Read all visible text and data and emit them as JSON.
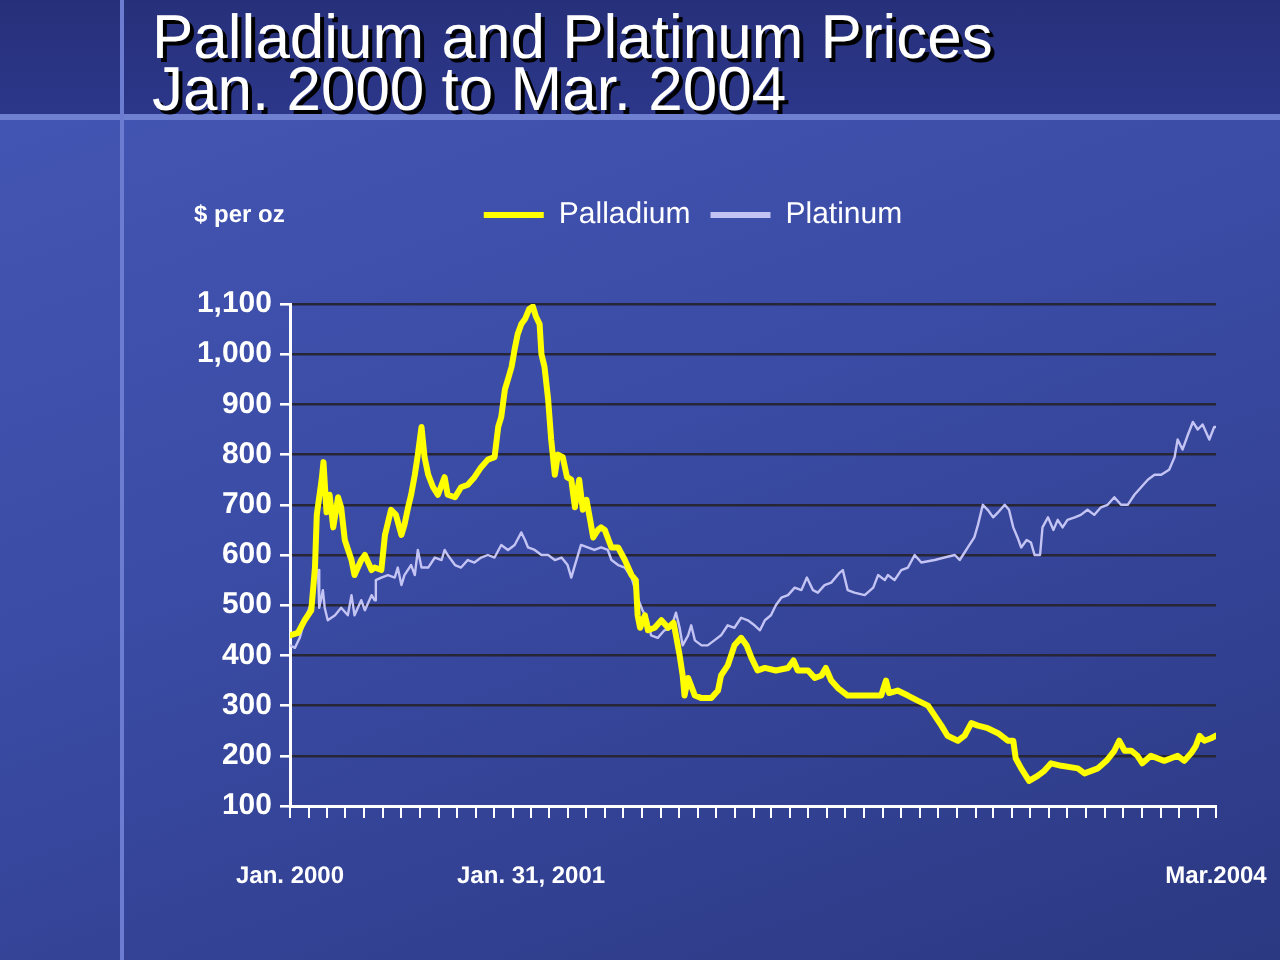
{
  "chart_data": {
    "type": "line",
    "title": "Palladium and Platinum Prices",
    "subtitle": "Jan. 2000 to Mar. 2004",
    "ylabel": "$ per oz",
    "series": [
      {
        "name": "Palladium",
        "color": "#ffff00",
        "x": [
          "2000-01-01",
          "2000-01-14",
          "2000-01-25",
          "2000-02-05",
          "2000-02-11",
          "2000-02-14",
          "2000-02-22",
          "2000-02-25",
          "2000-03-01",
          "2000-03-06",
          "2000-03-12",
          "2000-03-20",
          "2000-03-25",
          "2000-03-31",
          "2000-04-11",
          "2000-04-16",
          "2000-04-27",
          "2000-05-03",
          "2000-05-14",
          "2000-05-19",
          "2000-05-30",
          "2000-06-05",
          "2000-06-15",
          "2000-06-23",
          "2000-07-02",
          "2000-07-07",
          "2000-07-13",
          "2000-07-18",
          "2000-07-24",
          "2000-07-29",
          "2000-08-04",
          "2000-08-09",
          "2000-08-15",
          "2000-08-23",
          "2000-08-31",
          "2000-09-11",
          "2000-09-16",
          "2000-09-28",
          "2000-10-08",
          "2000-10-19",
          "2000-10-30",
          "2000-11-10",
          "2000-11-21",
          "2000-12-02",
          "2000-12-08",
          "2000-12-13",
          "2000-12-19",
          "2000-12-24",
          "2000-12-30",
          "2001-01-04",
          "2001-01-09",
          "2001-01-15",
          "2001-01-21",
          "2001-01-28",
          "2001-02-03",
          "2001-02-08",
          "2001-02-14",
          "2001-02-17",
          "2001-02-22",
          "2001-02-28",
          "2001-03-05",
          "2001-03-11",
          "2001-03-16",
          "2001-03-24",
          "2001-03-31",
          "2001-04-07",
          "2001-04-13",
          "2001-04-20",
          "2001-04-26",
          "2001-05-02",
          "2001-05-08",
          "2001-05-13",
          "2001-05-21",
          "2001-05-26",
          "2001-06-01",
          "2001-06-12",
          "2001-06-23",
          "2001-07-04",
          "2001-07-15",
          "2001-07-22",
          "2001-07-25",
          "2001-07-29",
          "2001-08-06",
          "2001-08-11",
          "2001-08-22",
          "2001-09-02",
          "2001-09-13",
          "2001-09-22",
          "2001-09-26",
          "2001-10-02",
          "2001-10-07",
          "2001-10-10",
          "2001-10-16",
          "2001-10-27",
          "2001-11-07",
          "2001-11-23",
          "2001-12-04",
          "2001-12-09",
          "2001-12-20",
          "2001-12-31",
          "2002-01-11",
          "2002-01-20",
          "2002-01-28",
          "2002-02-07",
          "2002-02-19",
          "2002-03-09",
          "2002-03-29",
          "2002-04-07",
          "2002-04-14",
          "2002-05-01",
          "2002-05-12",
          "2002-05-23",
          "2002-05-30",
          "2002-06-08",
          "2002-06-19",
          "2002-07-05",
          "2002-08-07",
          "2002-08-29",
          "2002-09-06",
          "2002-09-11",
          "2002-09-25",
          "2002-10-12",
          "2002-10-28",
          "2002-11-14",
          "2002-11-25",
          "2002-12-06",
          "2002-12-16",
          "2003-01-02",
          "2003-01-13",
          "2003-01-24",
          "2003-02-04",
          "2003-02-20",
          "2003-03-09",
          "2003-03-25",
          "2003-04-03",
          "2003-04-07",
          "2003-04-16",
          "2003-04-29",
          "2003-05-13",
          "2003-05-24",
          "2003-06-04",
          "2003-06-21",
          "2003-07-18",
          "2003-07-29",
          "2003-08-20",
          "2003-09-03",
          "2003-09-16",
          "2003-09-24",
          "2003-10-03",
          "2003-10-14",
          "2003-10-24",
          "2003-11-01",
          "2003-11-15",
          "2003-12-07",
          "2003-12-29",
          "2004-01-09",
          "2004-01-20",
          "2004-01-28",
          "2004-02-03",
          "2004-02-11",
          "2004-02-22",
          "2004-03-01"
        ],
        "values": [
          440,
          445,
          470,
          490,
          575,
          680,
          750,
          785,
          685,
          720,
          655,
          715,
          695,
          630,
          590,
          560,
          590,
          600,
          570,
          575,
          570,
          640,
          690,
          680,
          640,
          660,
          695,
          720,
          760,
          800,
          855,
          795,
          760,
          735,
          720,
          755,
          720,
          715,
          735,
          740,
          755,
          775,
          790,
          795,
          855,
          875,
          930,
          950,
          975,
          1010,
          1040,
          1060,
          1070,
          1090,
          1095,
          1075,
          1060,
          1000,
          975,
          910,
          830,
          760,
          800,
          795,
          755,
          750,
          695,
          750,
          690,
          710,
          670,
          635,
          650,
          655,
          650,
          615,
          615,
          590,
          560,
          550,
          480,
          455,
          480,
          450,
          455,
          470,
          455,
          465,
          440,
          400,
          360,
          320,
          355,
          320,
          315,
          315,
          330,
          360,
          380,
          420,
          435,
          420,
          395,
          370,
          375,
          370,
          375,
          390,
          370,
          370,
          355,
          360,
          375,
          350,
          335,
          320,
          320,
          320,
          350,
          325,
          330,
          320,
          310,
          300,
          280,
          260,
          240,
          230,
          240,
          265,
          260,
          255,
          245,
          230,
          230,
          195,
          175,
          150,
          160,
          170,
          185,
          180,
          175,
          165,
          175,
          190,
          210,
          230,
          210,
          210,
          200,
          185,
          200,
          190,
          200,
          190,
          205,
          220,
          240,
          230,
          235,
          240
        ]
      },
      {
        "name": "Platinum",
        "color": "#c4c4f4",
        "x": [
          "2000-01-01",
          "2000-01-09",
          "2000-01-17",
          "2000-01-25",
          "2000-02-02",
          "2000-02-07",
          "2000-02-11",
          "2000-02-16",
          "2000-02-18",
          "2000-02-24",
          "2000-02-27",
          "2000-03-03",
          "2000-03-15",
          "2000-03-25",
          "2000-04-05",
          "2000-04-11",
          "2000-04-16",
          "2000-04-27",
          "2000-05-03",
          "2000-05-14",
          "2000-05-19",
          "2000-05-21",
          "2000-05-30",
          "2000-06-10",
          "2000-06-21",
          "2000-06-26",
          "2000-07-02",
          "2000-07-07",
          "2000-07-18",
          "2000-07-24",
          "2000-07-29",
          "2000-08-04",
          "2000-08-15",
          "2000-08-26",
          "2000-09-06",
          "2000-09-11",
          "2000-09-16",
          "2000-09-28",
          "2000-10-08",
          "2000-10-19",
          "2000-10-30",
          "2000-11-10",
          "2000-11-21",
          "2000-12-02",
          "2000-12-13",
          "2000-12-24",
          "2001-01-04",
          "2001-01-15",
          "2001-01-21",
          "2001-01-26",
          "2001-02-06",
          "2001-02-17",
          "2001-02-28",
          "2001-03-11",
          "2001-03-22",
          "2001-04-01",
          "2001-04-07",
          "2001-04-13",
          "2001-04-23",
          "2001-05-04",
          "2001-05-15",
          "2001-05-26",
          "2001-06-06",
          "2001-06-12",
          "2001-06-23",
          "2001-07-04",
          "2001-07-15",
          "2001-07-25",
          "2001-08-02",
          "2001-08-11",
          "2001-08-16",
          "2001-08-27",
          "2001-09-07",
          "2001-09-18",
          "2001-09-26",
          "2001-10-02",
          "2001-10-07",
          "2001-10-16",
          "2001-10-21",
          "2001-10-27",
          "2001-11-07",
          "2001-11-17",
          "2001-11-28",
          "2001-12-09",
          "2001-12-20",
          "2001-12-31",
          "2002-01-11",
          "2002-01-22",
          "2002-02-02",
          "2002-02-11",
          "2002-02-19",
          "2002-03-01",
          "2002-03-09",
          "2002-03-18",
          "2002-03-29",
          "2002-04-09",
          "2002-04-20",
          "2002-04-29",
          "2002-05-09",
          "2002-05-17",
          "2002-05-28",
          "2002-06-08",
          "2002-06-22",
          "2002-06-27",
          "2002-07-05",
          "2002-07-16",
          "2002-08-02",
          "2002-08-16",
          "2002-08-24",
          "2002-09-04",
          "2002-09-09",
          "2002-09-20",
          "2002-10-01",
          "2002-10-12",
          "2002-10-23",
          "2002-11-03",
          "2002-11-25",
          "2002-12-11",
          "2002-12-28",
          "2003-01-05",
          "2003-01-13",
          "2003-01-21",
          "2003-01-29",
          "2003-02-04",
          "2003-02-12",
          "2003-02-20",
          "2003-03-01",
          "2003-03-09",
          "2003-03-20",
          "2003-03-27",
          "2003-04-03",
          "2003-04-10",
          "2003-04-16",
          "2003-04-25",
          "2003-05-02",
          "2003-05-08",
          "2003-05-17",
          "2003-05-21",
          "2003-05-30",
          "2003-06-08",
          "2003-06-15",
          "2003-06-23",
          "2003-07-01",
          "2003-07-13",
          "2003-07-23",
          "2003-08-03",
          "2003-08-14",
          "2003-08-25",
          "2003-09-05",
          "2003-09-16",
          "2003-09-27",
          "2003-10-08",
          "2003-10-19",
          "2003-10-30",
          "2003-11-10",
          "2003-11-21",
          "2003-12-02",
          "2003-12-15",
          "2003-12-24",
          "2003-12-29",
          "2004-01-06",
          "2004-01-15",
          "2004-01-23",
          "2004-01-31",
          "2004-02-08",
          "2004-02-19",
          "2004-02-27",
          "2004-03-01"
        ],
        "values": [
          420,
          415,
          435,
          470,
          495,
          520,
          560,
          570,
          495,
          530,
          495,
          470,
          480,
          495,
          480,
          520,
          480,
          510,
          490,
          520,
          510,
          550,
          555,
          560,
          555,
          575,
          540,
          560,
          580,
          560,
          610,
          575,
          575,
          595,
          590,
          610,
          600,
          580,
          575,
          590,
          585,
          595,
          600,
          595,
          620,
          610,
          620,
          645,
          630,
          615,
          610,
          600,
          600,
          590,
          595,
          580,
          555,
          580,
          620,
          615,
          610,
          615,
          610,
          590,
          580,
          575,
          555,
          515,
          490,
          470,
          440,
          435,
          450,
          455,
          485,
          455,
          420,
          440,
          460,
          430,
          420,
          420,
          430,
          440,
          460,
          455,
          475,
          470,
          460,
          450,
          470,
          480,
          500,
          515,
          520,
          535,
          530,
          555,
          530,
          525,
          540,
          545,
          565,
          570,
          530,
          525,
          520,
          535,
          560,
          550,
          560,
          550,
          570,
          575,
          600,
          585,
          590,
          595,
          600,
          590,
          605,
          620,
          635,
          660,
          700,
          690,
          675,
          685,
          700,
          690,
          655,
          635,
          615,
          630,
          625,
          600,
          600,
          655,
          675,
          650,
          670,
          655,
          670,
          675,
          680,
          690,
          680,
          695,
          700,
          715,
          700,
          700,
          720,
          735,
          750,
          760,
          760,
          770,
          795,
          830,
          810,
          840,
          865,
          850,
          860,
          830,
          855,
          855
        ]
      }
    ],
    "xlim": [
      "2000-01",
      "2004-03"
    ],
    "xticks": [
      {
        "value": "2000-01",
        "label": "Jan. 2000"
      },
      {
        "value": "2000-02",
        "label": null
      },
      {
        "value": "2000-03",
        "label": null
      },
      {
        "value": "2000-04",
        "label": null
      },
      {
        "value": "2000-05",
        "label": null
      },
      {
        "value": "2000-06",
        "label": null
      },
      {
        "value": "2000-07",
        "label": null
      },
      {
        "value": "2000-08",
        "label": null
      },
      {
        "value": "2000-09",
        "label": null
      },
      {
        "value": "2000-10",
        "label": null
      },
      {
        "value": "2000-11",
        "label": null
      },
      {
        "value": "2000-12",
        "label": null
      },
      {
        "value": "2001-01",
        "label": null
      },
      {
        "value": "2001-01-31",
        "label": "Jan. 31, 2001"
      },
      {
        "value": "2001-03",
        "label": null
      },
      {
        "value": "2001-04",
        "label": null
      },
      {
        "value": "2001-05",
        "label": null
      },
      {
        "value": "2001-06",
        "label": null
      },
      {
        "value": "2001-07",
        "label": null
      },
      {
        "value": "2001-08",
        "label": null
      },
      {
        "value": "2001-09",
        "label": null
      },
      {
        "value": "2001-10",
        "label": null
      },
      {
        "value": "2001-11",
        "label": null
      },
      {
        "value": "2001-12",
        "label": null
      },
      {
        "value": "2002-01",
        "label": null
      },
      {
        "value": "2002-02",
        "label": null
      },
      {
        "value": "2002-03",
        "label": null
      },
      {
        "value": "2002-04",
        "label": null
      },
      {
        "value": "2002-05",
        "label": null
      },
      {
        "value": "2002-06",
        "label": null
      },
      {
        "value": "2002-07",
        "label": null
      },
      {
        "value": "2002-08",
        "label": null
      },
      {
        "value": "2002-09",
        "label": null
      },
      {
        "value": "2002-10",
        "label": null
      },
      {
        "value": "2002-11",
        "label": null
      },
      {
        "value": "2002-12",
        "label": null
      },
      {
        "value": "2003-01",
        "label": null
      },
      {
        "value": "2003-02",
        "label": null
      },
      {
        "value": "2003-03",
        "label": null
      },
      {
        "value": "2003-04",
        "label": null
      },
      {
        "value": "2003-05",
        "label": null
      },
      {
        "value": "2003-06",
        "label": null
      },
      {
        "value": "2003-07",
        "label": null
      },
      {
        "value": "2003-08",
        "label": null
      },
      {
        "value": "2003-09",
        "label": null
      },
      {
        "value": "2003-10",
        "label": null
      },
      {
        "value": "2003-11",
        "label": null
      },
      {
        "value": "2003-12",
        "label": null
      },
      {
        "value": "2004-01",
        "label": null
      },
      {
        "value": "2004-02",
        "label": null
      },
      {
        "value": "2004-03",
        "label": "Mar.2004"
      }
    ],
    "ylim": [
      100,
      1100
    ],
    "yticks": [
      100,
      200,
      300,
      400,
      500,
      600,
      700,
      800,
      900,
      {
        "value": 1000,
        "label": "1,000"
      },
      {
        "value": 1100,
        "label": "1,100"
      }
    ],
    "grid": "y",
    "legend": "top"
  }
}
